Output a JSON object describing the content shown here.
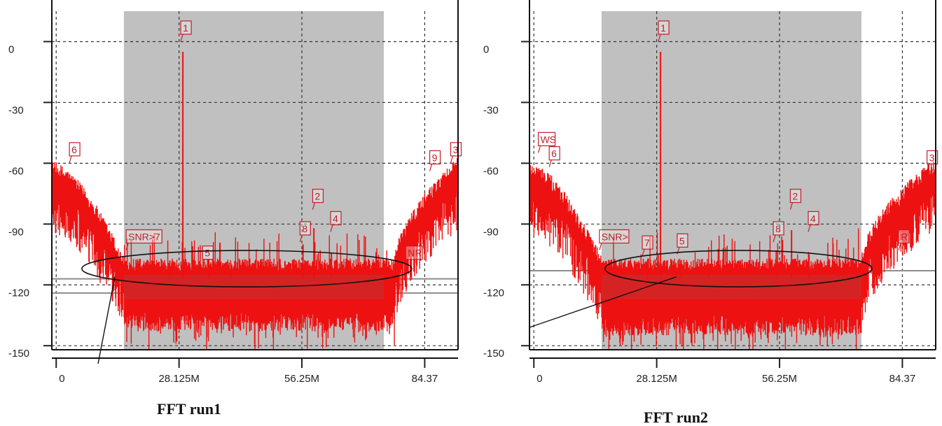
{
  "chart_data": [
    {
      "type": "line",
      "caption": "FFT run1",
      "x_ticks": [
        "0",
        "28.125M",
        "56.25M",
        "84.37"
      ],
      "y_ticks": [
        "0",
        "-30",
        "-60",
        "-90",
        "-120",
        "-150"
      ],
      "xlim": [
        -1.0,
        92.0
      ],
      "ylim": [
        -152,
        15
      ],
      "x_tick_values": [
        0,
        28.125,
        56.25,
        84.37
      ],
      "y_tick_values": [
        0,
        -30,
        -60,
        -90,
        -120,
        -150
      ],
      "shaded_band": [
        15.5,
        75.0
      ],
      "series": [
        {
          "spectrum": {
            "skirt_left": {
              "x_from": -1.0,
              "x_to": 15.5,
              "level_start": -65,
              "level_end": -112
            },
            "skirt_right": {
              "x_from": 77.5,
              "x_to": 92.0,
              "level_start": -112,
              "level_end": -63
            },
            "noise_floor": -117,
            "noise_bottom": -133
          },
          "peaks": [
            {
              "x": 29.0,
              "y": -5
            },
            {
              "x": 59.0,
              "y": -92
            },
            {
              "x": 63.0,
              "y": -104
            },
            {
              "x": 56.5,
              "y": -100
            },
            {
              "x": 35.0,
              "y": -110
            },
            {
              "x": 26.0,
              "y": -108
            },
            {
              "x": 40.0,
              "y": -110
            }
          ]
        }
      ],
      "markers": [
        {
          "label": "1",
          "x": 29.0,
          "y": 5
        },
        {
          "label": "2",
          "x": 59.2,
          "y": -78
        },
        {
          "label": "4",
          "x": 63.3,
          "y": -89
        },
        {
          "label": "8",
          "x": 56.3,
          "y": -94
        },
        {
          "label": "5",
          "x": 34.0,
          "y": -106
        },
        {
          "label": "SNR>7",
          "x": 16.5,
          "y": -98
        },
        {
          "label": "6",
          "x": 3.5,
          "y": -55
        },
        {
          "label": "9",
          "x": 86.0,
          "y": -59
        },
        {
          "label": "3",
          "x": 90.8,
          "y": -55
        },
        {
          "label": "NR",
          "x": 80.5,
          "y": -106
        }
      ],
      "reference_lines": [
        -117,
        -124
      ]
    },
    {
      "type": "line",
      "caption": "FFT run2",
      "x_ticks": [
        "0",
        "28.125M",
        "56.25M",
        "84.37"
      ],
      "y_ticks": [
        "0",
        "-30",
        "-60",
        "-90",
        "-120",
        "-150"
      ],
      "xlim": [
        -1.0,
        92.0
      ],
      "ylim": [
        -152,
        15
      ],
      "x_tick_values": [
        0,
        28.125,
        56.25,
        84.37
      ],
      "y_tick_values": [
        0,
        -30,
        -60,
        -90,
        -120,
        -150
      ],
      "shaded_band": [
        15.5,
        75.0
      ],
      "series": [
        {
          "spectrum": {
            "skirt_left": {
              "x_from": -1.0,
              "x_to": 15.5,
              "level_start": -65,
              "level_end": -112
            },
            "skirt_right": {
              "x_from": 75.0,
              "x_to": 92.0,
              "level_start": -112,
              "level_end": -63
            },
            "noise_floor": -117,
            "noise_bottom": -135
          },
          "peaks": [
            {
              "x": 29.0,
              "y": -5
            },
            {
              "x": 59.0,
              "y": -93
            },
            {
              "x": 63.0,
              "y": -105
            },
            {
              "x": 55.5,
              "y": -103
            },
            {
              "x": 33.5,
              "y": -108
            },
            {
              "x": 26.0,
              "y": -108
            },
            {
              "x": 40.0,
              "y": -110
            }
          ]
        }
      ],
      "markers": [
        {
          "label": "1",
          "x": 29.0,
          "y": 5
        },
        {
          "label": "2",
          "x": 59.2,
          "y": -78
        },
        {
          "label": "4",
          "x": 63.3,
          "y": -89
        },
        {
          "label": "8",
          "x": 55.3,
          "y": -94
        },
        {
          "label": "5",
          "x": 33.3,
          "y": -100
        },
        {
          "label": "SNR>",
          "x": 15.5,
          "y": -98
        },
        {
          "label": "7",
          "x": 25.3,
          "y": -101
        },
        {
          "label": "WS",
          "x": 1.5,
          "y": -50
        },
        {
          "label": "6",
          "x": 4.0,
          "y": -57
        },
        {
          "label": "3",
          "x": 90.5,
          "y": -59
        },
        {
          "label": "R",
          "x": 84.0,
          "y": -98
        }
      ],
      "reference_lines": [
        -113
      ]
    }
  ],
  "colors": {
    "spectrum": "#ee1111",
    "floor": "#cc2a2a",
    "shade": "#c0c0c0",
    "marker": "#c0202a"
  },
  "captions": {
    "left": "FFT run1",
    "right": "FFT run2"
  }
}
